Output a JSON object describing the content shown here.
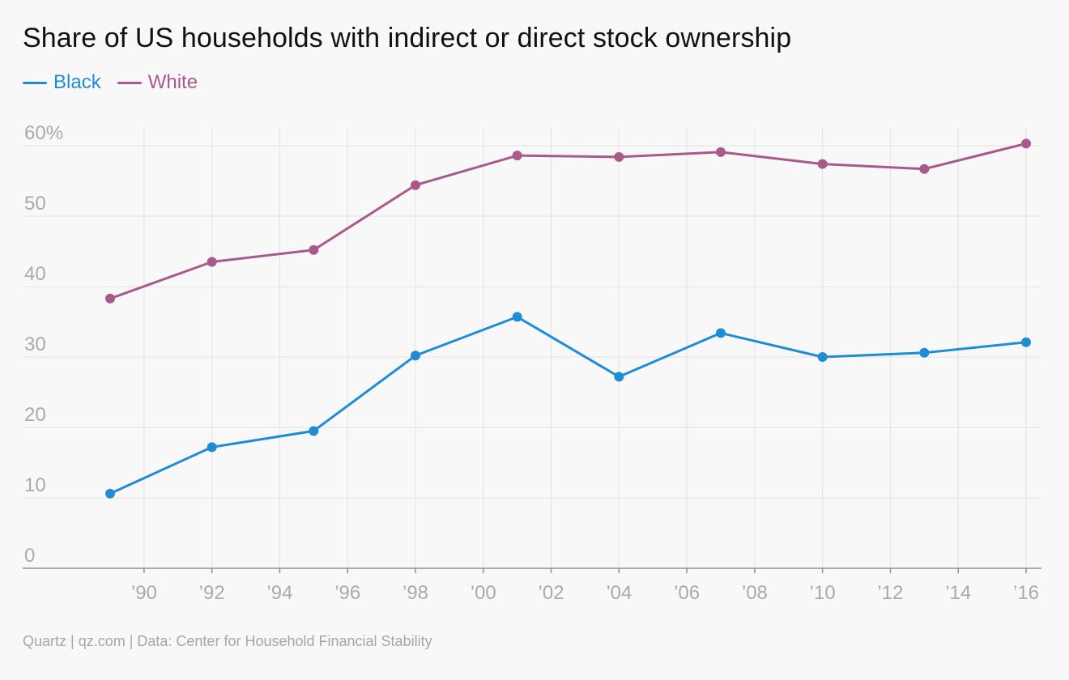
{
  "colors": {
    "black": "#1f8dd6",
    "white": "#a95a8a",
    "grid": "#e2e2e2",
    "axis": "#8f8f8f",
    "tick_text": "#aaaaaa",
    "background": "#f8f8f8"
  },
  "header": {
    "title": "Share of US households with indirect or direct stock ownership"
  },
  "legend": {
    "items": [
      {
        "label": "Black",
        "color": "#1f8dd6"
      },
      {
        "label": "White",
        "color": "#a95a8a"
      }
    ]
  },
  "footer": {
    "source": "Quartz | qz.com | Data: Center for Household Financial Stability"
  },
  "chart_data": {
    "type": "line",
    "title": "Share of US households with indirect or direct stock ownership",
    "x": [
      1989,
      1992,
      1995,
      1998,
      2001,
      2004,
      2007,
      2010,
      2013,
      2016
    ],
    "series": [
      {
        "name": "Black",
        "color": "#1f8dd6",
        "values": [
          10.6,
          17.2,
          19.5,
          30.2,
          35.7,
          27.2,
          33.4,
          30.0,
          30.6,
          32.1
        ]
      },
      {
        "name": "White",
        "color": "#a95a8a",
        "values": [
          38.3,
          43.5,
          45.2,
          54.4,
          58.6,
          58.4,
          59.1,
          57.4,
          56.7,
          60.3
        ]
      }
    ],
    "y_ticks": [
      0,
      10,
      20,
      30,
      40,
      50,
      60
    ],
    "y_tick_labels": [
      "0",
      "10",
      "20",
      "30",
      "40",
      "50",
      "60%"
    ],
    "x_ticks": [
      1990,
      1992,
      1994,
      1996,
      1998,
      2000,
      2002,
      2004,
      2006,
      2008,
      2010,
      2012,
      2014,
      2016
    ],
    "x_tick_labels": [
      "’90",
      "’92",
      "’94",
      "’96",
      "’98",
      "’00",
      "’02",
      "’04",
      "’06",
      "’08",
      "’10",
      "’12",
      "’14",
      "’16"
    ],
    "xlabel": "",
    "ylabel": "",
    "xlim": [
      1988.5,
      2016.4
    ],
    "ylim": [
      0,
      60
    ],
    "grid": true,
    "legend_position": "top-left"
  }
}
